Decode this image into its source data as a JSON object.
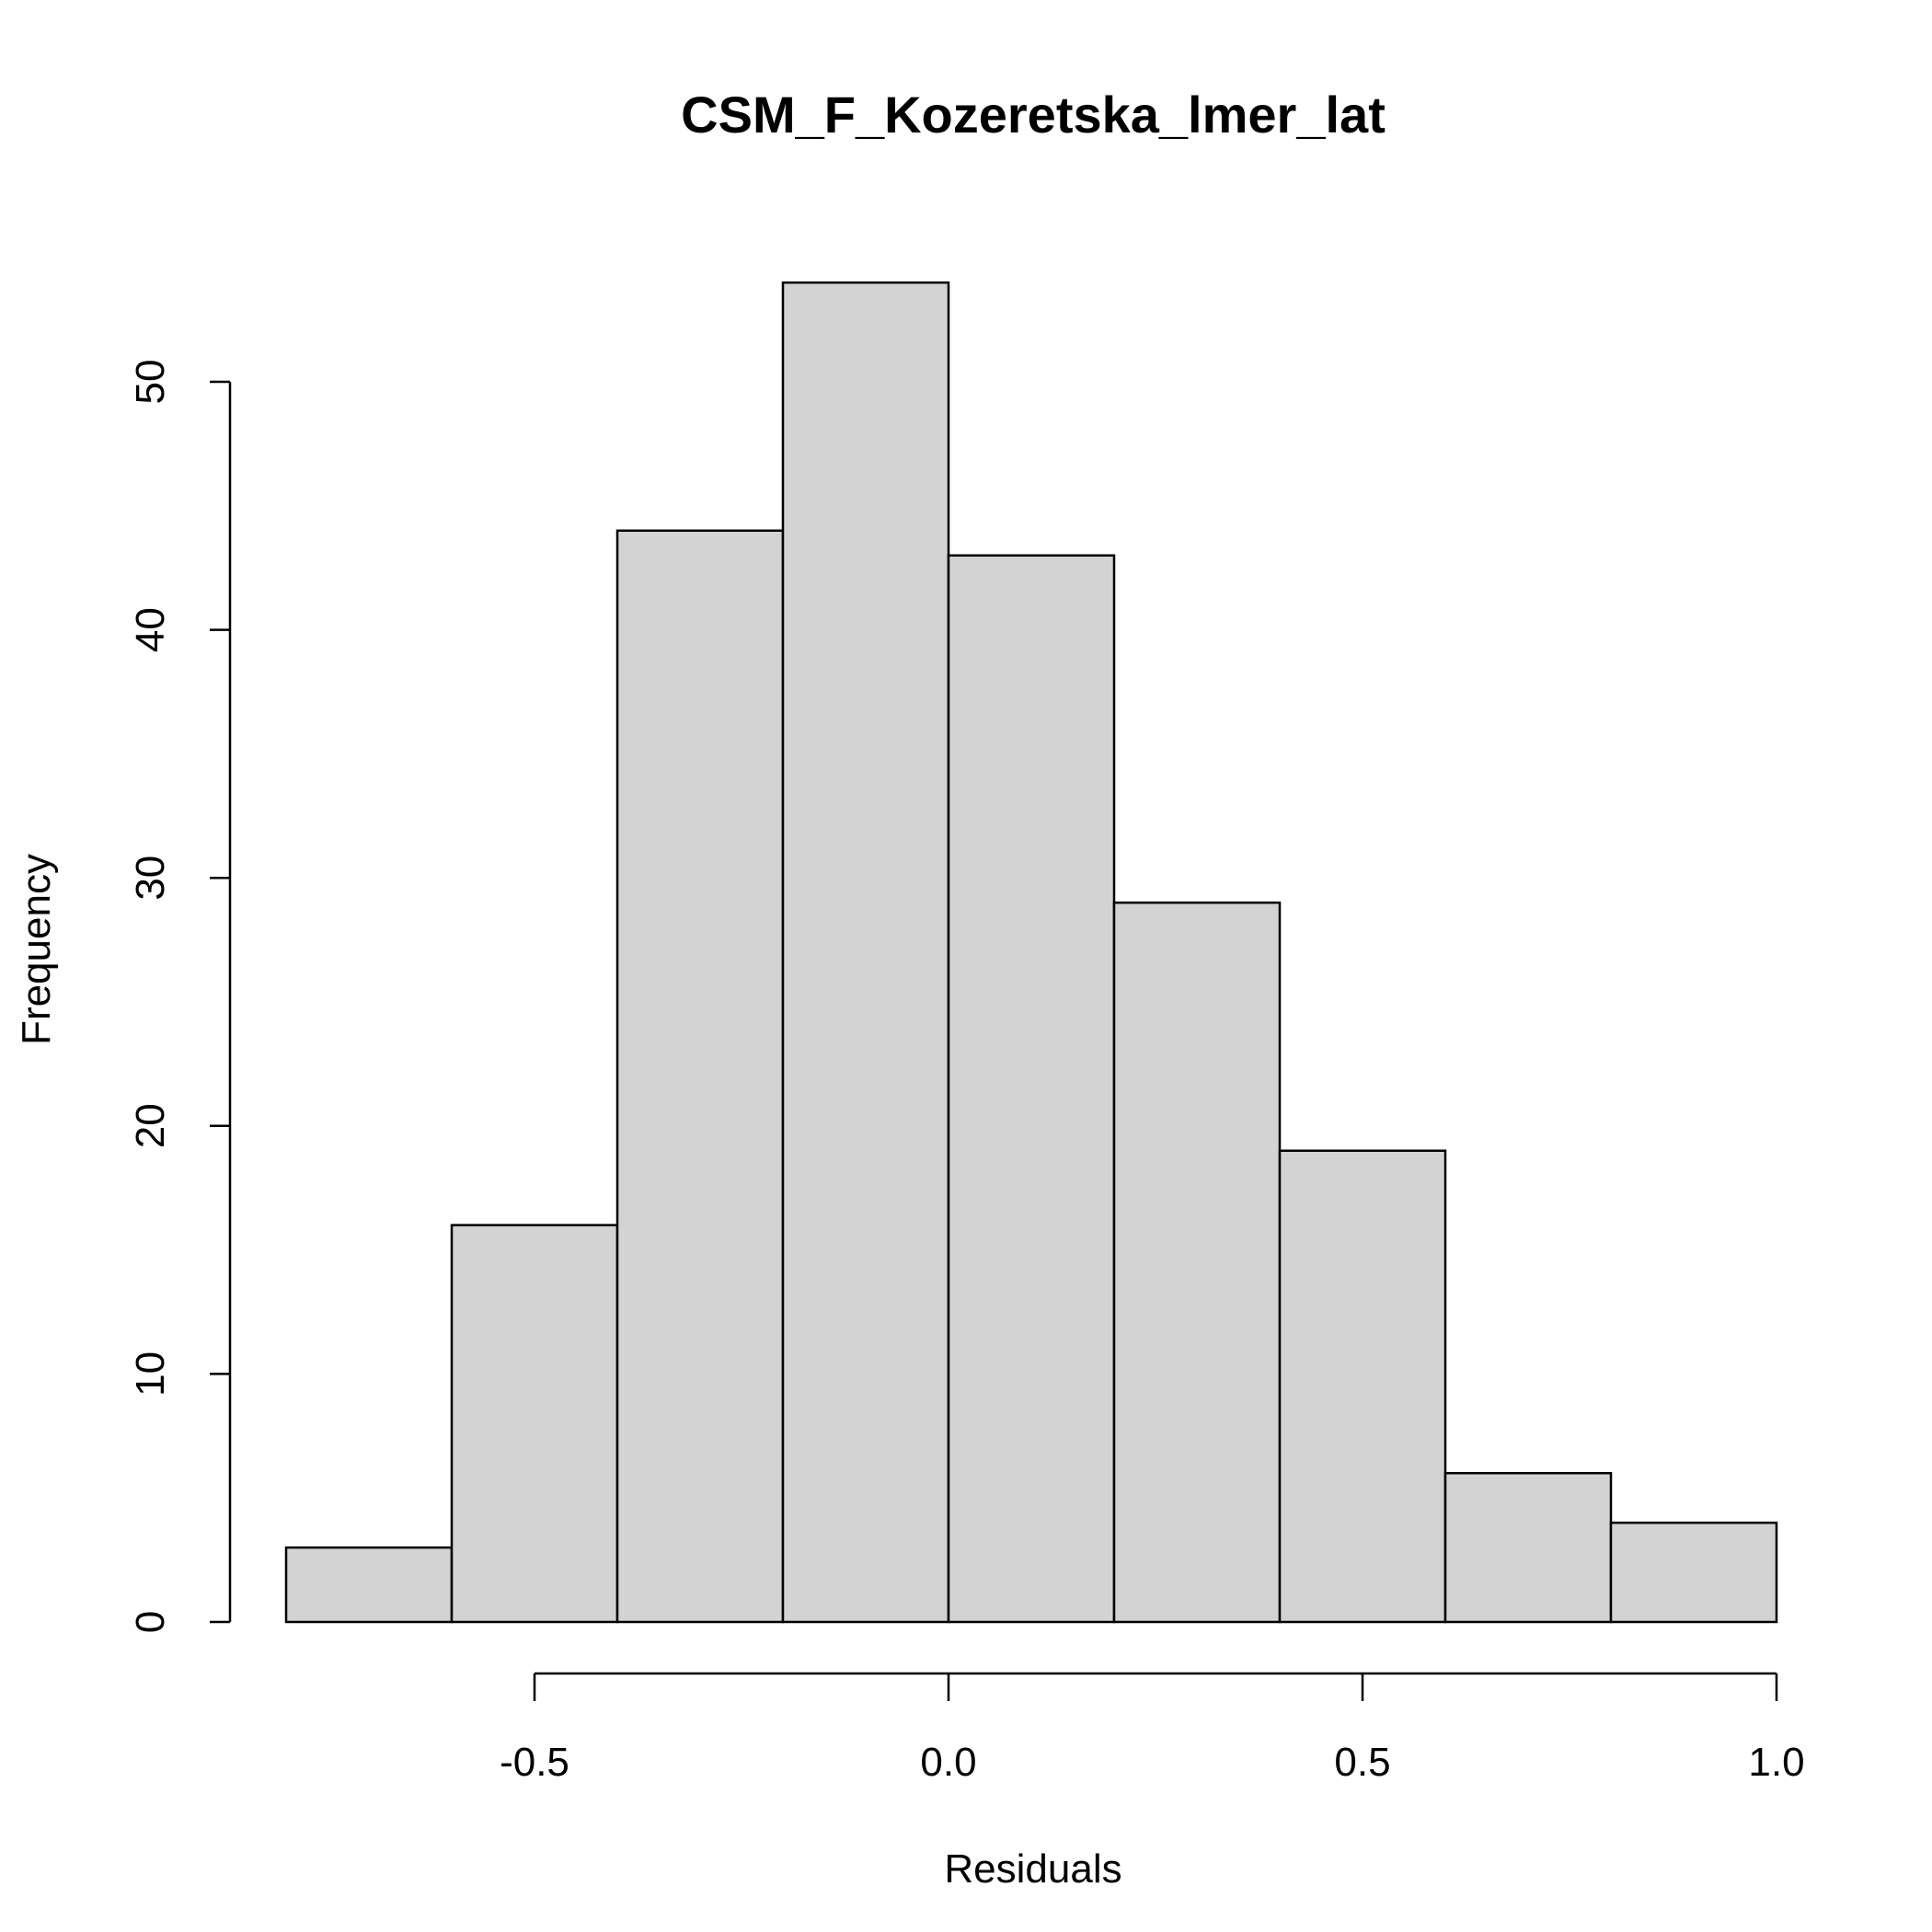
{
  "chart_data": {
    "type": "bar",
    "title": "CSM_F_Kozeretska_lmer_lat",
    "xlabel": "Residuals",
    "ylabel": "Frequency",
    "bin_edges": [
      -0.8,
      -0.6,
      -0.4,
      -0.2,
      0.0,
      0.2,
      0.4,
      0.6,
      0.8,
      1.0
    ],
    "values": [
      3,
      16,
      44,
      54,
      43,
      29,
      19,
      6,
      4
    ],
    "xlim": [
      -0.8,
      1.0
    ],
    "ylim": [
      0,
      54
    ],
    "x_ticks": [
      -0.5,
      0.0,
      0.5,
      1.0
    ],
    "x_tick_labels": [
      "-0.5",
      "0.0",
      "0.5",
      "1.0"
    ],
    "y_ticks": [
      0,
      10,
      20,
      30,
      40,
      50
    ],
    "y_tick_labels": [
      "0",
      "10",
      "20",
      "30",
      "40",
      "50"
    ],
    "bar_color": "#d3d3d3",
    "edge_color": "#000000",
    "grid": false,
    "legend": "none"
  }
}
